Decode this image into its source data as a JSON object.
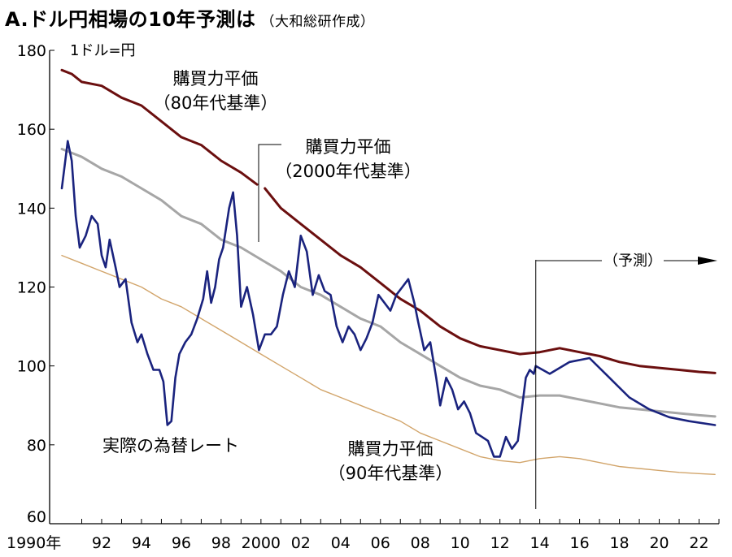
{
  "title": "A.ドル円相場の10年予測は",
  "source": "（大和総研作成）",
  "chart_data": {
    "type": "line",
    "unit_label": "1ドル=円",
    "ylim": [
      60,
      180
    ],
    "y_ticks": [
      "180",
      "160",
      "140",
      "120",
      "100",
      "80",
      "60"
    ],
    "y_tick_values": [
      180,
      160,
      140,
      120,
      100,
      80,
      60
    ],
    "xlim": [
      1990,
      2023
    ],
    "x_ticks": [
      "1990年",
      "92",
      "94",
      "96",
      "98",
      "2000",
      "02",
      "04",
      "06",
      "08",
      "10",
      "12",
      "14",
      "16",
      "18",
      "20",
      "22"
    ],
    "x_tick_values": [
      1990,
      1992,
      1994,
      1996,
      1998,
      2000,
      2002,
      2004,
      2006,
      2008,
      2010,
      2012,
      2014,
      2016,
      2018,
      2020,
      2022
    ],
    "forecast_start": 2013.8,
    "forecast_label": "（予測）",
    "grid": false,
    "series": [
      {
        "name": "購買力平価（80年代基準）",
        "label_lines": [
          "購買力平価",
          "（80年代基準）"
        ],
        "color": "#6b0f0f",
        "points": [
          [
            1990.0,
            175
          ],
          [
            1990.5,
            174
          ],
          [
            1991.0,
            172
          ],
          [
            1992.0,
            171
          ],
          [
            1993.0,
            168
          ],
          [
            1994.0,
            166
          ],
          [
            1995.0,
            162
          ],
          [
            1996.0,
            158
          ],
          [
            1997.0,
            156
          ],
          [
            1998.0,
            152
          ],
          [
            1999.0,
            149
          ],
          [
            1999.8,
            146
          ]
        ]
      },
      {
        "name": "",
        "color": "#6b0f0f",
        "points": [
          [
            2000.2,
            145
          ],
          [
            2001.0,
            140
          ],
          [
            2002.0,
            136
          ],
          [
            2003.0,
            132
          ],
          [
            2004.0,
            128
          ],
          [
            2005.0,
            125
          ],
          [
            2006.0,
            121
          ],
          [
            2007.0,
            117
          ],
          [
            2008.0,
            114
          ],
          [
            2009.0,
            110
          ],
          [
            2010.0,
            107
          ],
          [
            2011.0,
            105
          ],
          [
            2012.0,
            104
          ],
          [
            2013.0,
            103
          ],
          [
            2014.0,
            103.5
          ],
          [
            2015.0,
            104.5
          ],
          [
            2016.0,
            103.5
          ],
          [
            2017.0,
            102.5
          ],
          [
            2018.0,
            101
          ],
          [
            2019.0,
            100
          ],
          [
            2020.0,
            99.5
          ],
          [
            2021.0,
            99
          ],
          [
            2022.0,
            98.5
          ],
          [
            2022.8,
            98.2
          ]
        ]
      },
      {
        "name": "購買力平価（2000年代基準）",
        "label_lines": [
          "購買力平価",
          "（2000年代基準）"
        ],
        "color": "#a6a6a6",
        "points": [
          [
            1990.0,
            155
          ],
          [
            1991.0,
            153
          ],
          [
            1992.0,
            150
          ],
          [
            1993.0,
            148
          ],
          [
            1994.0,
            145
          ],
          [
            1995.0,
            142
          ],
          [
            1996.0,
            138
          ],
          [
            1997.0,
            136
          ],
          [
            1998.0,
            132
          ],
          [
            1999.0,
            130
          ],
          [
            2000.0,
            127
          ],
          [
            2001.0,
            124
          ],
          [
            2002.0,
            120
          ],
          [
            2003.0,
            118
          ],
          [
            2004.0,
            115
          ],
          [
            2005.0,
            112
          ],
          [
            2006.0,
            110
          ],
          [
            2007.0,
            106
          ],
          [
            2008.0,
            103
          ],
          [
            2009.0,
            100
          ],
          [
            2010.0,
            97
          ],
          [
            2011.0,
            95
          ],
          [
            2012.0,
            94
          ],
          [
            2013.0,
            92
          ],
          [
            2014.0,
            92.5
          ],
          [
            2015.0,
            92.5
          ],
          [
            2016.0,
            91.5
          ],
          [
            2017.0,
            90.5
          ],
          [
            2018.0,
            89.5
          ],
          [
            2019.0,
            89
          ],
          [
            2020.0,
            88.5
          ],
          [
            2021.0,
            88
          ],
          [
            2022.0,
            87.5
          ],
          [
            2022.8,
            87.2
          ]
        ]
      },
      {
        "name": "購買力平価（90年代基準）",
        "label_lines": [
          "購買力平価",
          "（90年代基準）"
        ],
        "color": "#d2a56b",
        "points": [
          [
            1990.0,
            128
          ],
          [
            1991.0,
            126
          ],
          [
            1992.0,
            124
          ],
          [
            1993.0,
            122
          ],
          [
            1994.0,
            120
          ],
          [
            1995.0,
            117
          ],
          [
            1996.0,
            115
          ],
          [
            1997.0,
            112
          ],
          [
            1998.0,
            109
          ],
          [
            1999.0,
            106
          ],
          [
            2000.0,
            103
          ],
          [
            2001.0,
            100
          ],
          [
            2002.0,
            97
          ],
          [
            2003.0,
            94
          ],
          [
            2004.0,
            92
          ],
          [
            2005.0,
            90
          ],
          [
            2006.0,
            88
          ],
          [
            2007.0,
            86
          ],
          [
            2008.0,
            83
          ],
          [
            2009.0,
            81
          ],
          [
            2010.0,
            79
          ],
          [
            2011.0,
            77
          ],
          [
            2012.0,
            76
          ],
          [
            2013.0,
            75.5
          ],
          [
            2014.0,
            76.5
          ],
          [
            2015.0,
            77
          ],
          [
            2016.0,
            76.5
          ],
          [
            2017.0,
            75.5
          ],
          [
            2018.0,
            74.5
          ],
          [
            2019.0,
            74
          ],
          [
            2020.0,
            73.5
          ],
          [
            2021.0,
            73
          ],
          [
            2022.0,
            72.7
          ],
          [
            2022.8,
            72.5
          ]
        ]
      },
      {
        "name": "実際の為替レート",
        "label_lines": [
          "実際の為替レート"
        ],
        "color": "#1a237e",
        "points": [
          [
            1990.0,
            145
          ],
          [
            1990.3,
            157
          ],
          [
            1990.5,
            152
          ],
          [
            1990.7,
            138
          ],
          [
            1990.9,
            130
          ],
          [
            1991.2,
            133
          ],
          [
            1991.5,
            138
          ],
          [
            1991.8,
            136
          ],
          [
            1992.0,
            128
          ],
          [
            1992.2,
            125
          ],
          [
            1992.4,
            132
          ],
          [
            1992.7,
            125
          ],
          [
            1992.9,
            120
          ],
          [
            1993.2,
            122
          ],
          [
            1993.5,
            111
          ],
          [
            1993.8,
            106
          ],
          [
            1994.0,
            108
          ],
          [
            1994.3,
            103
          ],
          [
            1994.6,
            99
          ],
          [
            1994.9,
            99
          ],
          [
            1995.1,
            96
          ],
          [
            1995.3,
            85
          ],
          [
            1995.5,
            86
          ],
          [
            1995.7,
            97
          ],
          [
            1995.9,
            103
          ],
          [
            1996.2,
            106
          ],
          [
            1996.5,
            108
          ],
          [
            1996.8,
            112
          ],
          [
            1997.1,
            117
          ],
          [
            1997.3,
            124
          ],
          [
            1997.5,
            116
          ],
          [
            1997.7,
            120
          ],
          [
            1997.9,
            127
          ],
          [
            1998.1,
            130
          ],
          [
            1998.4,
            140
          ],
          [
            1998.6,
            144
          ],
          [
            1998.8,
            133
          ],
          [
            1999.0,
            115
          ],
          [
            1999.3,
            120
          ],
          [
            1999.6,
            113
          ],
          [
            1999.9,
            104
          ],
          [
            2000.2,
            108
          ],
          [
            2000.5,
            108
          ],
          [
            2000.8,
            110
          ],
          [
            2001.1,
            118
          ],
          [
            2001.4,
            124
          ],
          [
            2001.7,
            120
          ],
          [
            2002.0,
            133
          ],
          [
            2002.3,
            129
          ],
          [
            2002.6,
            118
          ],
          [
            2002.9,
            123
          ],
          [
            2003.2,
            119
          ],
          [
            2003.5,
            118
          ],
          [
            2003.8,
            110
          ],
          [
            2004.1,
            106
          ],
          [
            2004.4,
            110
          ],
          [
            2004.7,
            108
          ],
          [
            2005.0,
            104
          ],
          [
            2005.3,
            107
          ],
          [
            2005.6,
            111
          ],
          [
            2005.9,
            118
          ],
          [
            2006.2,
            116
          ],
          [
            2006.5,
            114
          ],
          [
            2006.8,
            118
          ],
          [
            2007.1,
            120
          ],
          [
            2007.4,
            122
          ],
          [
            2007.7,
            116
          ],
          [
            2007.9,
            111
          ],
          [
            2008.2,
            104
          ],
          [
            2008.5,
            106
          ],
          [
            2008.8,
            97
          ],
          [
            2009.0,
            90
          ],
          [
            2009.3,
            97
          ],
          [
            2009.6,
            94
          ],
          [
            2009.9,
            89
          ],
          [
            2010.2,
            91
          ],
          [
            2010.5,
            88
          ],
          [
            2010.8,
            83
          ],
          [
            2011.1,
            82
          ],
          [
            2011.4,
            81
          ],
          [
            2011.7,
            77
          ],
          [
            2012.0,
            77
          ],
          [
            2012.3,
            82
          ],
          [
            2012.6,
            79
          ],
          [
            2012.9,
            81
          ],
          [
            2013.1,
            89
          ],
          [
            2013.3,
            97
          ],
          [
            2013.5,
            99
          ],
          [
            2013.7,
            98
          ],
          [
            2013.8,
            100
          ],
          [
            2014.5,
            98
          ],
          [
            2015.5,
            101
          ],
          [
            2016.5,
            102
          ],
          [
            2017.5,
            97
          ],
          [
            2018.5,
            92
          ],
          [
            2019.5,
            89
          ],
          [
            2020.5,
            87
          ],
          [
            2021.5,
            86
          ],
          [
            2022.8,
            85
          ]
        ]
      }
    ]
  }
}
